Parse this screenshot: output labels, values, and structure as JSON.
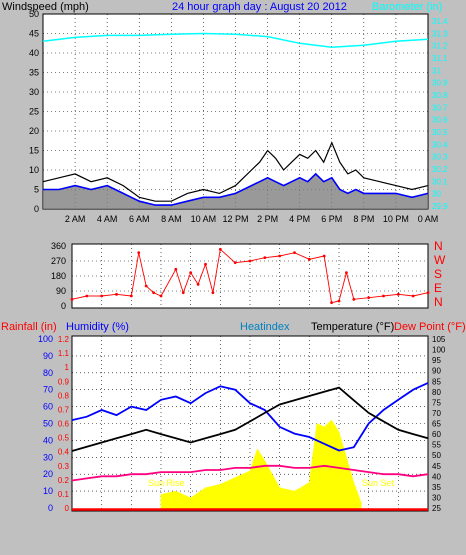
{
  "chart_data": [
    {
      "type": "line",
      "title": "24 hour graph day : August 20 2012",
      "ylabel_left": "Windspeed (mph)",
      "ylabel_right": "Barometer (in)",
      "yleft_ticks": [
        "0",
        "5",
        "10",
        "15",
        "20",
        "25",
        "30",
        "35",
        "40",
        "45",
        "50"
      ],
      "yright_ticks": [
        "29.9",
        "30",
        "30.1",
        "30.2",
        "30.3",
        "30.4",
        "30.5",
        "30.6",
        "30.7",
        "30.8",
        "30.9",
        "31",
        "31.1",
        "31.2",
        "31.3",
        "31.4"
      ],
      "x_ticks": [
        "2 AM",
        "4 AM",
        "6 AM",
        "8 AM",
        "10 AM",
        "12 PM",
        "2 PM",
        "4 PM",
        "6 PM",
        "8 PM",
        "10 PM",
        "0 AM"
      ],
      "ylim_left": [
        0,
        50
      ],
      "colors": {
        "gust": "#000000",
        "avg": "#0000ff",
        "fill": "#808080",
        "barometer": "#00ffff",
        "title": "#0000ff",
        "right_label": "#00ffff"
      },
      "series": [
        {
          "key": "barometer",
          "hours": [
            0,
            2,
            4,
            6,
            8,
            10,
            12,
            14,
            16,
            18,
            20,
            22,
            24
          ],
          "values": [
            43,
            44,
            44.5,
            44.5,
            44.8,
            45,
            44.8,
            44.2,
            42.5,
            41.5,
            42,
            43,
            43.5
          ]
        },
        {
          "key": "gust",
          "hours": [
            0,
            1,
            2,
            3,
            4,
            5,
            6,
            7,
            8,
            9,
            10,
            11,
            12,
            12.5,
            13,
            13.5,
            14,
            14.5,
            15,
            15.5,
            16,
            16.5,
            17,
            17.5,
            18,
            18.5,
            19,
            19.5,
            20,
            21,
            22,
            23,
            24
          ],
          "values": [
            7,
            8,
            9,
            7,
            8,
            6,
            3,
            2,
            2,
            4,
            5,
            4,
            6,
            8,
            10,
            12,
            15,
            13,
            10,
            12,
            14,
            13,
            15,
            12,
            17,
            12,
            9,
            10,
            8,
            7,
            6,
            5,
            6
          ]
        },
        {
          "key": "avg",
          "hours": [
            0,
            1,
            2,
            3,
            4,
            5,
            6,
            7,
            8,
            9,
            10,
            11,
            12,
            12.5,
            13,
            13.5,
            14,
            14.5,
            15,
            15.5,
            16,
            16.5,
            17,
            17.5,
            18,
            18.5,
            19,
            19.5,
            20,
            21,
            22,
            23,
            24
          ],
          "values": [
            5,
            5,
            6,
            5,
            6,
            4,
            2,
            1,
            1,
            2,
            3,
            3,
            4,
            5,
            6,
            7,
            8,
            7,
            6,
            7,
            8,
            7,
            9,
            7,
            8,
            5,
            4,
            5,
            4,
            4,
            4,
            3,
            4
          ]
        }
      ]
    },
    {
      "type": "scatter",
      "yleft_ticks": [
        "0",
        "90",
        "180",
        "270",
        "360"
      ],
      "ylim_left": [
        0,
        360
      ],
      "right_labels": [
        "N",
        "W",
        "S",
        "E",
        "N"
      ],
      "colors": {
        "direction": "#ff0000",
        "right_label": "#ff0000"
      },
      "series": [
        {
          "key": "direction",
          "hours": [
            0,
            1,
            2,
            3,
            4,
            4.5,
            5,
            5.5,
            6,
            7,
            7.5,
            8,
            8.5,
            9,
            9.5,
            10,
            11,
            12,
            13,
            14,
            15,
            16,
            17,
            17.5,
            18,
            18.5,
            19,
            20,
            21,
            22,
            23,
            24
          ],
          "values": [
            40,
            60,
            60,
            70,
            60,
            320,
            120,
            80,
            60,
            220,
            80,
            200,
            130,
            250,
            80,
            340,
            260,
            270,
            290,
            300,
            320,
            280,
            300,
            20,
            30,
            200,
            40,
            50,
            60,
            70,
            60,
            80
          ]
        }
      ]
    },
    {
      "type": "line",
      "labels": {
        "rainfall": "Rainfall (in)",
        "humidity": "Humidity (%)",
        "heatindex": "Heatindex",
        "temperature": "Temperature (°F)",
        "dewpoint": "Dew Point (°F)"
      },
      "annotations": {
        "sunrise": "Sun Rise",
        "sunset": "Sun Set"
      },
      "yleft_ticks": [
        "0",
        "10",
        "20",
        "30",
        "40",
        "50",
        "60",
        "70",
        "80",
        "90",
        "100"
      ],
      "yrain_ticks": [
        "0",
        "0.1",
        "0.2",
        "0.3",
        "0.4",
        "0.5",
        "0.6",
        "0.7",
        "0.8",
        "0.9",
        "1",
        "1.1",
        "1.2"
      ],
      "yright_ticks": [
        "25",
        "30",
        "35",
        "40",
        "45",
        "50",
        "55",
        "60",
        "65",
        "70",
        "75",
        "80",
        "85",
        "90",
        "95",
        "100",
        "105"
      ],
      "ylim_left": [
        0,
        100
      ],
      "colors": {
        "temperature": "#000000",
        "humidity": "#0000ff",
        "dewpoint": "#ff0080",
        "solar": "#ffff00",
        "rain": "#ff0000",
        "rainfall_label": "#ff0000",
        "humidity_label": "#0000ff",
        "heatindex_label": "#0080c0",
        "temperature_label": "#000000",
        "dewpoint_label": "#ff0000"
      },
      "series": [
        {
          "key": "temperature",
          "hours": [
            0,
            1,
            2,
            3,
            4,
            5,
            6,
            7,
            8,
            9,
            10,
            11,
            12,
            13,
            14,
            15,
            16,
            17,
            18,
            19,
            20,
            21,
            22,
            23,
            24
          ],
          "values": [
            52,
            54,
            56,
            58,
            60,
            62,
            60,
            58,
            56,
            58,
            60,
            62,
            66,
            70,
            74,
            76,
            78,
            80,
            82,
            76,
            70,
            66,
            62,
            60,
            58
          ]
        },
        {
          "key": "humidity",
          "hours": [
            0,
            1,
            2,
            3,
            4,
            5,
            6,
            7,
            8,
            9,
            10,
            11,
            12,
            13,
            14,
            15,
            16,
            17,
            18,
            19,
            20,
            21,
            22,
            23,
            24
          ],
          "values": [
            52,
            54,
            58,
            55,
            60,
            58,
            64,
            66,
            62,
            68,
            72,
            70,
            62,
            58,
            48,
            44,
            42,
            38,
            34,
            36,
            50,
            58,
            64,
            70,
            74
          ]
        },
        {
          "key": "dewpoint",
          "hours": [
            0,
            1,
            2,
            3,
            4,
            5,
            6,
            7,
            8,
            9,
            10,
            11,
            12,
            13,
            14,
            15,
            16,
            17,
            18,
            19,
            20,
            21,
            22,
            23,
            24
          ],
          "values": [
            38,
            39,
            40,
            40,
            41,
            41,
            42,
            42,
            42,
            43,
            43,
            44,
            44,
            45,
            45,
            44,
            44,
            45,
            44,
            43,
            42,
            41,
            41,
            40,
            41
          ]
        },
        {
          "key": "solar",
          "hours": [
            6,
            7,
            8,
            9,
            10,
            11,
            12,
            12.5,
            13,
            14,
            15,
            16,
            16.5,
            17,
            17.5,
            18,
            18.5,
            19,
            19.5
          ],
          "values": [
            8,
            10,
            6,
            12,
            14,
            18,
            22,
            35,
            28,
            12,
            10,
            15,
            50,
            48,
            52,
            45,
            30,
            15,
            3
          ]
        },
        {
          "key": "rain",
          "hours": [
            0,
            24
          ],
          "values": [
            0,
            0
          ]
        }
      ]
    }
  ]
}
